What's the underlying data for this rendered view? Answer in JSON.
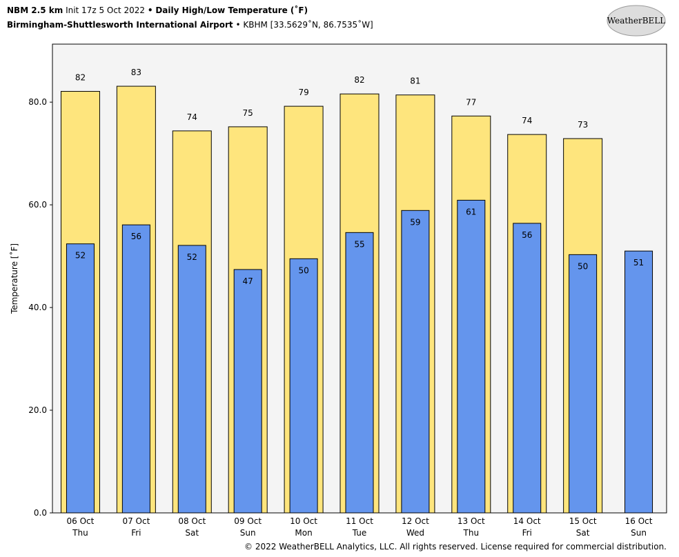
{
  "chart_data": {
    "type": "bar",
    "title_parts": [
      "NBM 2.5 km",
      "Init 17z 5 Oct 2022",
      "•",
      "Daily High/Low Temperature (˚F)"
    ],
    "subtitle_parts": [
      "Birmingham-Shuttlesworth International Airport",
      "• KBHM [33.5629˚N, 86.7535˚W]"
    ],
    "logo": "WeatherBELL",
    "copyright": "© 2022 WeatherBELL Analytics, LLC. All rights reserved. License required for commercial distribution.",
    "y_label": "Temperature [˚F]",
    "categories": [
      "06 Oct",
      "07 Oct",
      "08 Oct",
      "09 Oct",
      "10 Oct",
      "11 Oct",
      "12 Oct",
      "13 Oct",
      "14 Oct",
      "15 Oct",
      "16 Oct"
    ],
    "category_days": [
      "Thu",
      "Fri",
      "Sat",
      "Sun",
      "Mon",
      "Tue",
      "Wed",
      "Thu",
      "Fri",
      "Sat",
      "Sun"
    ],
    "series": [
      {
        "name": "High",
        "color": "#fee57d",
        "values": [
          82.1,
          83.1,
          74.4,
          75.2,
          79.2,
          81.6,
          81.4,
          77.3,
          73.7,
          72.9,
          null
        ],
        "value_labels": [
          "82",
          "83",
          "74",
          "75",
          "79",
          "82",
          "81",
          "77",
          "74",
          "73",
          null
        ]
      },
      {
        "name": "Low",
        "color": "#6495ed",
        "values": [
          52.4,
          56.1,
          52.1,
          47.4,
          49.5,
          54.6,
          58.9,
          60.9,
          56.4,
          50.3,
          51.0
        ],
        "value_labels": [
          "52",
          "56",
          "52",
          "47",
          "50",
          "55",
          "59",
          "61",
          "56",
          "50",
          "51"
        ]
      }
    ],
    "ylim": [
      0,
      91.3
    ],
    "yticks": [
      {
        "value": 0,
        "label": "0.0"
      },
      {
        "value": 20,
        "label": "20.0"
      },
      {
        "value": 40,
        "label": "40.0"
      },
      {
        "value": 60,
        "label": "60.0"
      },
      {
        "value": 80,
        "label": "80.0"
      }
    ]
  }
}
